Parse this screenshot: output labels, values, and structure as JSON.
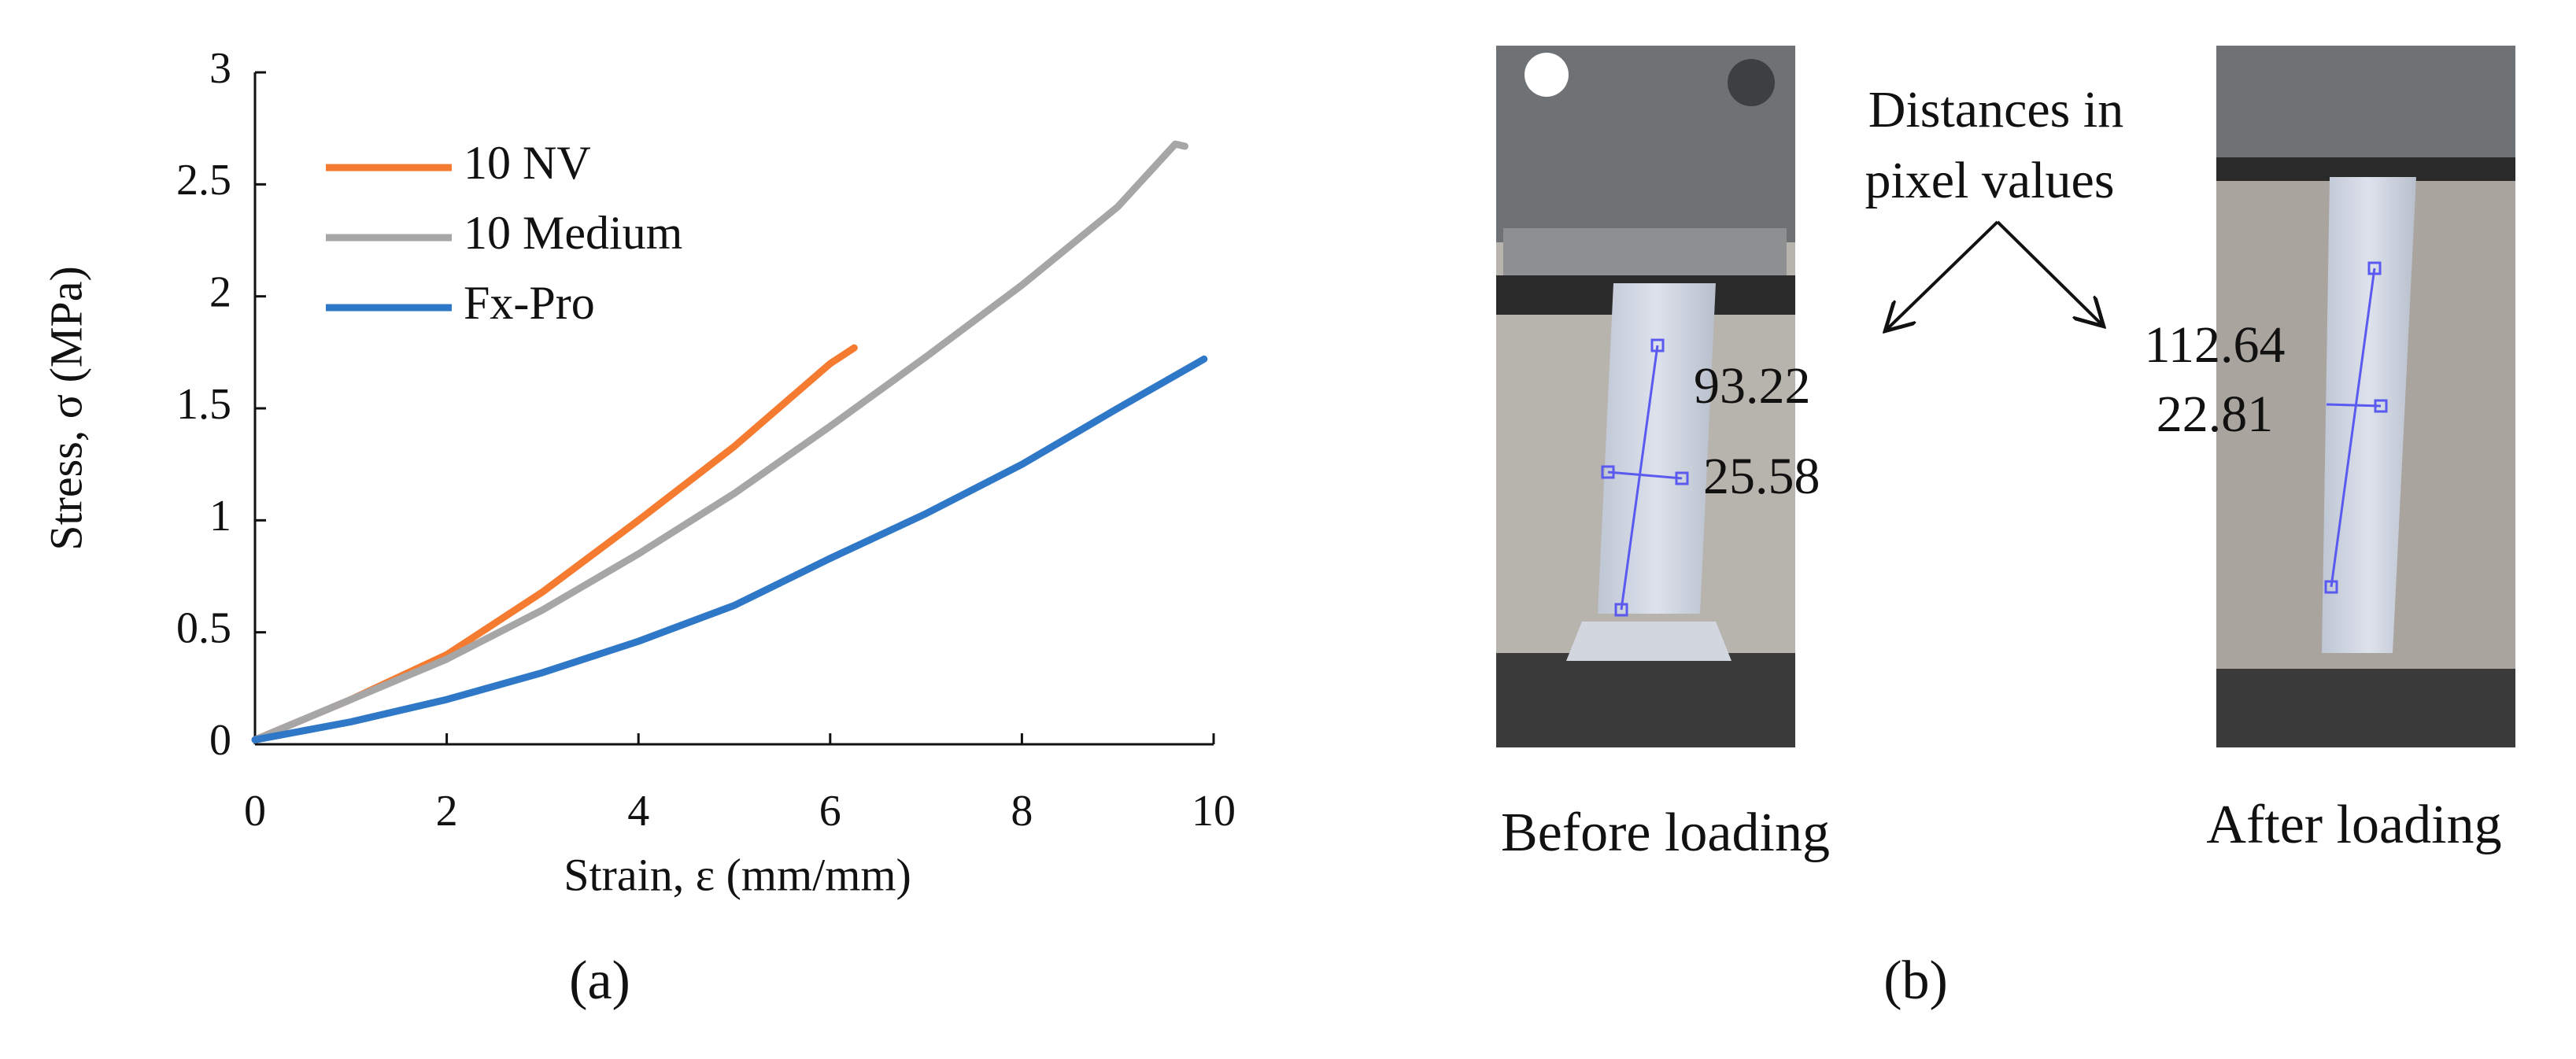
{
  "chart_data": {
    "type": "line",
    "xlabel": "Strain, ε (mm/mm)",
    "ylabel": "Stress, σ (MPa)",
    "panel_label": "(a)",
    "xlim": [
      0,
      10
    ],
    "ylim": [
      0,
      3
    ],
    "xticks": [
      0,
      2,
      4,
      6,
      8,
      10
    ],
    "yticks": [
      0,
      0.5,
      1,
      1.5,
      2,
      2.5,
      3
    ],
    "legend": "upper left",
    "series": [
      {
        "name": "10 NV",
        "color": "#f47b30",
        "x": [
          0,
          1,
          2,
          3,
          4,
          5,
          6,
          6.25
        ],
        "values": [
          0.02,
          0.2,
          0.4,
          0.68,
          1.0,
          1.33,
          1.7,
          1.77
        ]
      },
      {
        "name": "10 Medium",
        "color": "#a6a6a6",
        "x": [
          0,
          1,
          2,
          3,
          4,
          5,
          6,
          7,
          8,
          9,
          9.6,
          9.7
        ],
        "values": [
          0.02,
          0.2,
          0.38,
          0.6,
          0.85,
          1.12,
          1.42,
          1.73,
          2.05,
          2.4,
          2.68,
          2.67
        ]
      },
      {
        "name": "Fx-Pro",
        "color": "#2f78c8",
        "x": [
          0,
          1,
          2,
          3,
          4,
          5,
          6,
          7,
          8,
          9,
          9.9
        ],
        "values": [
          0.02,
          0.1,
          0.2,
          0.32,
          0.46,
          0.62,
          0.83,
          1.03,
          1.25,
          1.5,
          1.72
        ]
      }
    ]
  },
  "panel_b": {
    "panel_label": "(b)",
    "annotation": [
      "Distances in",
      "pixel values"
    ],
    "before": {
      "caption": "Before loading",
      "length": "93.22",
      "width": "25.58"
    },
    "after": {
      "caption": "After loading",
      "length": "112.64",
      "width": "22.81"
    }
  }
}
